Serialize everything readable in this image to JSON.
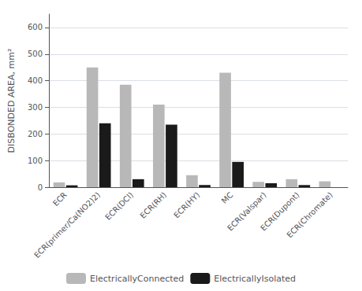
{
  "chart_data": {
    "type": "bar",
    "categories": [
      "ECR",
      "ECR(primer/Ca(NO2)2)",
      "ECR(DCl)",
      "ECR(RH)",
      "ECR(HY)",
      "MC",
      "ECR(Valspar)",
      "ECR(Dupont)",
      "ECR(Chromate)"
    ],
    "series": [
      {
        "name": "ElectricallyConnected",
        "color": "#b8b8b8",
        "values": [
          18,
          450,
          385,
          310,
          45,
          430,
          20,
          30,
          22
        ]
      },
      {
        "name": "ElectricallyIsolated",
        "color": "#1a1a1a",
        "values": [
          7,
          240,
          30,
          235,
          8,
          95,
          15,
          8,
          0
        ]
      }
    ],
    "ylabel": "DISBONDED AREA, mm²",
    "ylim": [
      0,
      650
    ],
    "yticks": [
      0,
      100,
      200,
      300,
      400,
      500,
      600
    ],
    "grid": true,
    "legend": "lower center"
  }
}
